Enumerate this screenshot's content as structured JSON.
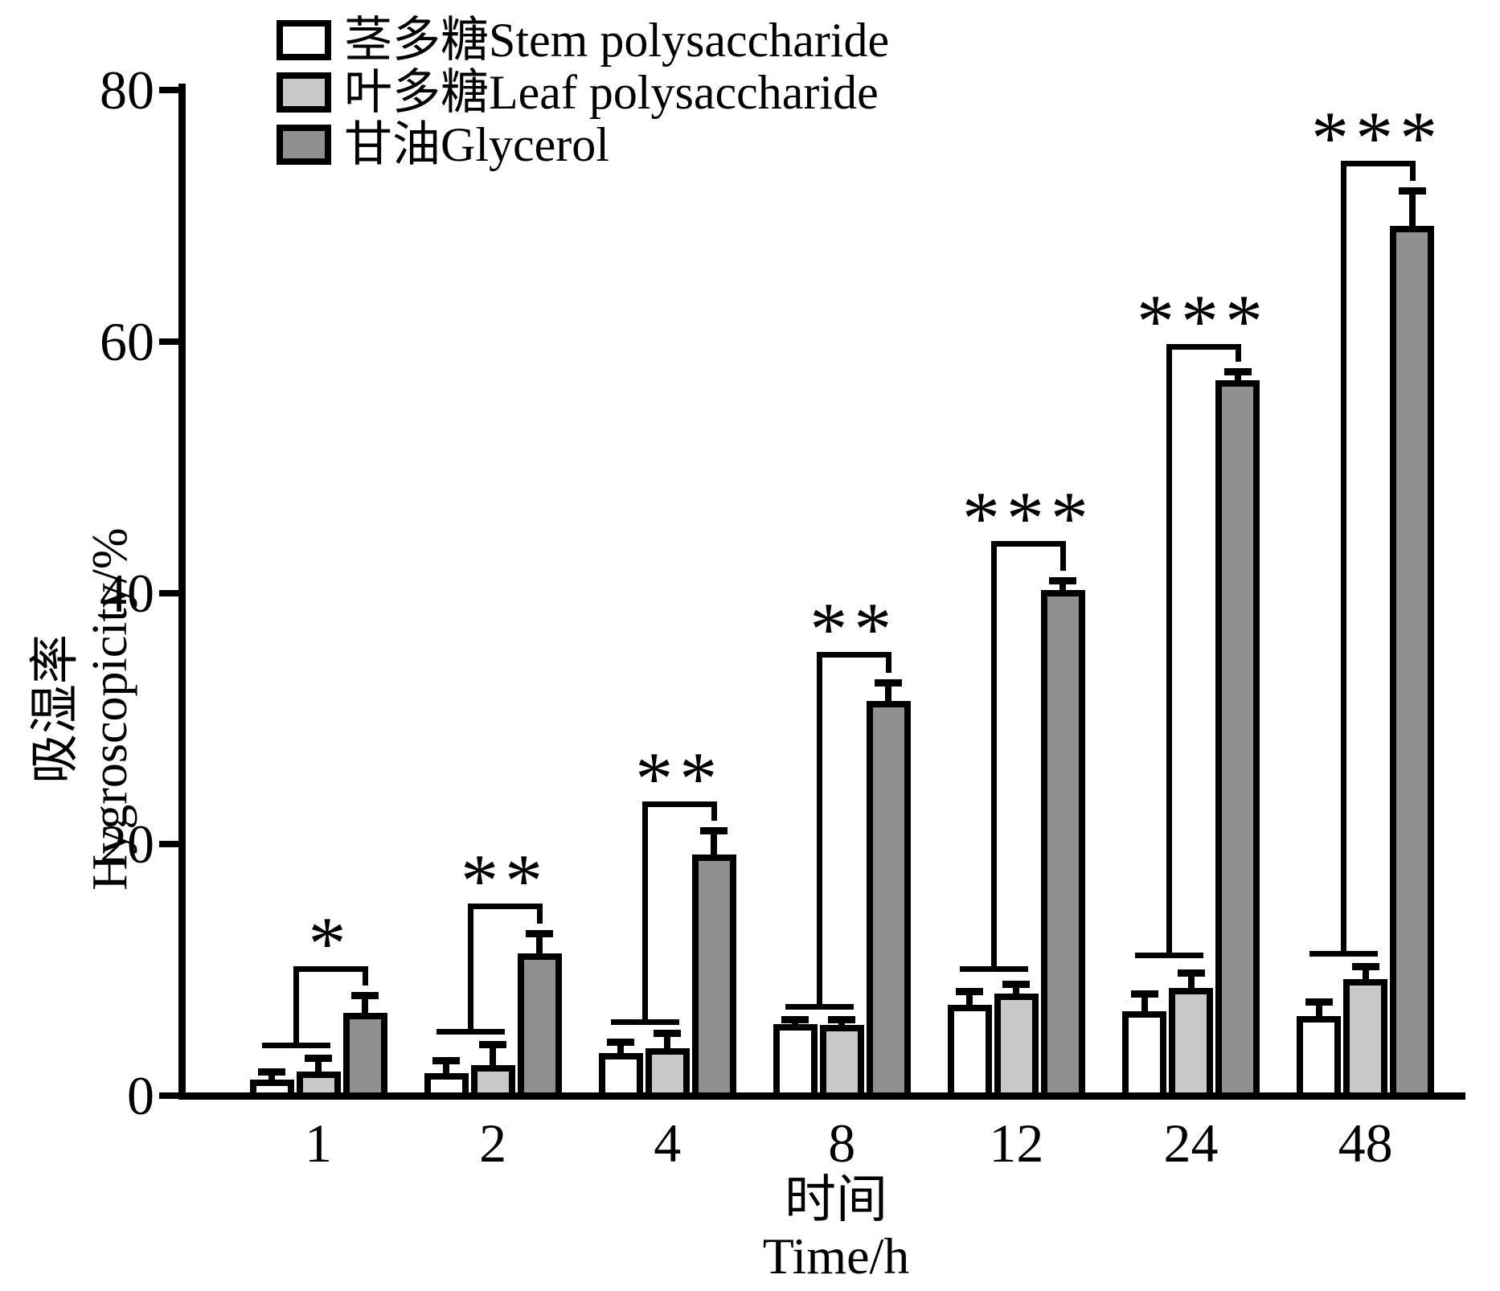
{
  "legend": {
    "items": [
      {
        "label": "茎多糖Stem polysaccharide",
        "fill": "#ffffff"
      },
      {
        "label": "叶多糖Leaf polysaccharide",
        "fill": "#c8c8c8"
      },
      {
        "label": "甘油Glycerol",
        "fill": "#8f8f8f"
      }
    ]
  },
  "axes": {
    "y_label_zh": "吸湿率",
    "y_label_en": "Hygroscopicity/%",
    "x_label_zh": "时间",
    "x_label_en": "Time/h"
  },
  "chart_data": {
    "type": "bar",
    "title": "",
    "categories": [
      "1",
      "2",
      "4",
      "8",
      "12",
      "24",
      "48"
    ],
    "xlabel": "时间 Time/h",
    "ylabel": "吸湿率 Hygroscopicity/%",
    "ylim": [
      0,
      80
    ],
    "yticks": [
      0,
      20,
      40,
      60,
      80
    ],
    "grid": false,
    "legend_position": "upper-left-inside",
    "line_color": "#000000",
    "series": [
      {
        "name": "茎多糖Stem polysaccharide",
        "fill": "#ffffff",
        "values": [
          1.3,
          1.8,
          3.4,
          5.7,
          7.2,
          6.7,
          6.3
        ],
        "errors": [
          0.6,
          1.0,
          0.9,
          0.4,
          1.1,
          1.4,
          1.2
        ]
      },
      {
        "name": "叶多糖Leaf polysaccharide",
        "fill": "#c8c8c8",
        "values": [
          1.9,
          2.4,
          3.8,
          5.6,
          8.1,
          8.6,
          9.3
        ],
        "errors": [
          1.1,
          1.7,
          1.2,
          0.5,
          0.8,
          1.2,
          1.0
        ]
      },
      {
        "name": "甘油Glycerol",
        "fill": "#8f8f8f",
        "values": [
          6.6,
          11.3,
          19.2,
          31.4,
          40.2,
          56.9,
          69.2
        ],
        "errors": [
          1.4,
          1.6,
          1.9,
          1.5,
          0.8,
          0.7,
          2.8
        ]
      }
    ],
    "significance": [
      {
        "category": "1",
        "label": "*",
        "pair_line_y": 4.2,
        "bracket_y": 10.3
      },
      {
        "category": "2",
        "label": "**",
        "pair_line_y": 5.3,
        "bracket_y": 15.3
      },
      {
        "category": "4",
        "label": "**",
        "pair_line_y": 6.1,
        "bracket_y": 23.4
      },
      {
        "category": "8",
        "label": "**",
        "pair_line_y": 7.3,
        "bracket_y": 35.3
      },
      {
        "category": "12",
        "label": "***",
        "pair_line_y": 10.3,
        "bracket_y": 44.1
      },
      {
        "category": "24",
        "label": "***",
        "pair_line_y": 11.4,
        "bracket_y": 59.8
      },
      {
        "category": "48",
        "label": "***",
        "pair_line_y": 11.5,
        "bracket_y": 74.4
      }
    ]
  }
}
